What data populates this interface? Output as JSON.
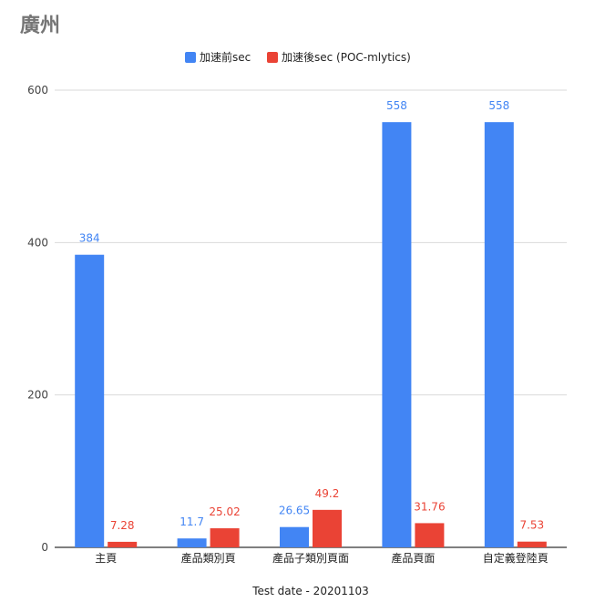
{
  "chart_data": {
    "type": "bar",
    "title": "廣州",
    "xlabel": "Test date - 20201103",
    "ylabel": "",
    "ylim": [
      0,
      600
    ],
    "yticks": [
      0,
      200,
      400,
      600
    ],
    "grid": true,
    "legend_position": "top-center",
    "categories": [
      "主頁",
      "產品類別頁",
      "產品子類別頁面",
      "產品頁面",
      "自定義登陸頁"
    ],
    "series": [
      {
        "name": "加速前sec",
        "color": "#4285F4",
        "values": [
          384,
          11.7,
          26.65,
          558,
          558
        ],
        "labels": [
          "384",
          "11.7",
          "26.65",
          "558",
          "558"
        ]
      },
      {
        "name": "加速後sec (POC-mlytics)",
        "color": "#EA4335",
        "values": [
          7.28,
          25.02,
          49.2,
          31.76,
          7.53
        ],
        "labels": [
          "7.28",
          "25.02",
          "49.2",
          "31.76",
          "7.53"
        ]
      }
    ]
  }
}
